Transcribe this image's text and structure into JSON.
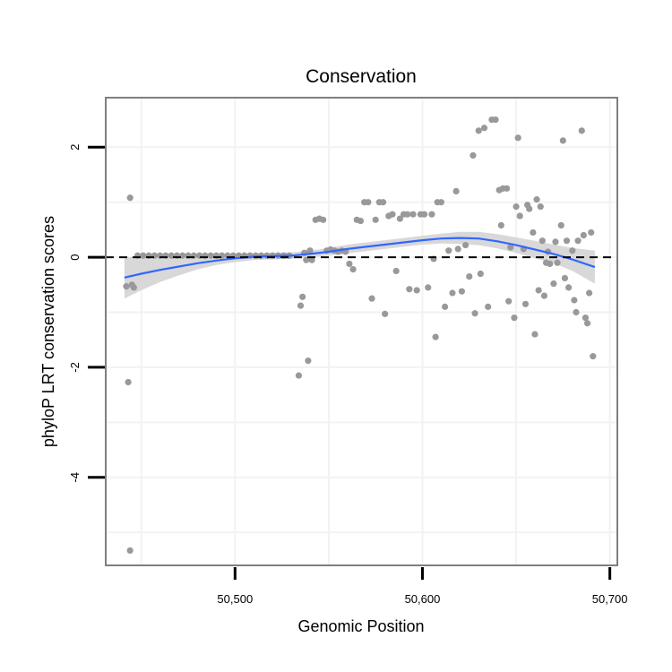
{
  "chart_data": {
    "type": "scatter",
    "title": "Conservation",
    "xlabel": "Genomic Position",
    "ylabel": "phyloP LRT conservation scores",
    "xlim": [
      50431,
      50704
    ],
    "ylim": [
      -5.6,
      2.9
    ],
    "x_ticks": [
      50500,
      50600,
      50700
    ],
    "x_tick_labels": [
      "50,500",
      "50,600",
      "50,700"
    ],
    "y_ticks": [
      -4,
      -2,
      0,
      2
    ],
    "y_tick_labels": [
      "-4",
      "-2",
      "0",
      "2"
    ],
    "grid": true,
    "reference_line": {
      "y": 0,
      "style": "dashed",
      "color": "#000000"
    },
    "colors": {
      "points": "#999999",
      "smooth": "#3366ff",
      "ribbon": "#d4d4d4",
      "grid": "#f2f2f2",
      "panel_border": "#7f7f7f"
    },
    "points": [
      {
        "x": 50442,
        "y": -0.53
      },
      {
        "x": 50443,
        "y": -2.27
      },
      {
        "x": 50444,
        "y": 1.08
      },
      {
        "x": 50445,
        "y": -0.5
      },
      {
        "x": 50446,
        "y": -0.55
      },
      {
        "x": 50444,
        "y": -5.33
      },
      {
        "x": 50448,
        "y": 0.03
      },
      {
        "x": 50451,
        "y": 0.03
      },
      {
        "x": 50454,
        "y": 0.03
      },
      {
        "x": 50457,
        "y": 0.03
      },
      {
        "x": 50460,
        "y": 0.03
      },
      {
        "x": 50463,
        "y": 0.03
      },
      {
        "x": 50466,
        "y": 0.03
      },
      {
        "x": 50469,
        "y": 0.03
      },
      {
        "x": 50472,
        "y": 0.03
      },
      {
        "x": 50475,
        "y": 0.03
      },
      {
        "x": 50478,
        "y": 0.03
      },
      {
        "x": 50481,
        "y": 0.03
      },
      {
        "x": 50484,
        "y": 0.03
      },
      {
        "x": 50487,
        "y": 0.03
      },
      {
        "x": 50490,
        "y": 0.03
      },
      {
        "x": 50493,
        "y": 0.03
      },
      {
        "x": 50496,
        "y": 0.03
      },
      {
        "x": 50499,
        "y": 0.03
      },
      {
        "x": 50502,
        "y": 0.03
      },
      {
        "x": 50505,
        "y": 0.03
      },
      {
        "x": 50508,
        "y": 0.03
      },
      {
        "x": 50511,
        "y": 0.03
      },
      {
        "x": 50514,
        "y": 0.03
      },
      {
        "x": 50517,
        "y": 0.03
      },
      {
        "x": 50520,
        "y": 0.03
      },
      {
        "x": 50523,
        "y": 0.03
      },
      {
        "x": 50526,
        "y": 0.03
      },
      {
        "x": 50529,
        "y": 0.03
      },
      {
        "x": 50534,
        "y": -2.15
      },
      {
        "x": 50535,
        "y": -0.88
      },
      {
        "x": 50536,
        "y": -0.72
      },
      {
        "x": 50537,
        "y": 0.08
      },
      {
        "x": 50538,
        "y": -0.05
      },
      {
        "x": 50539,
        "y": -1.88
      },
      {
        "x": 50540,
        "y": 0.12
      },
      {
        "x": 50541,
        "y": -0.05
      },
      {
        "x": 50543,
        "y": 0.68
      },
      {
        "x": 50545,
        "y": 0.7
      },
      {
        "x": 50547,
        "y": 0.68
      },
      {
        "x": 50549,
        "y": 0.12
      },
      {
        "x": 50551,
        "y": 0.14
      },
      {
        "x": 50553,
        "y": 0.12
      },
      {
        "x": 50555,
        "y": 0.1
      },
      {
        "x": 50557,
        "y": 0.12
      },
      {
        "x": 50559,
        "y": 0.1
      },
      {
        "x": 50561,
        "y": -0.12
      },
      {
        "x": 50563,
        "y": -0.22
      },
      {
        "x": 50565,
        "y": 0.68
      },
      {
        "x": 50567,
        "y": 0.66
      },
      {
        "x": 50569,
        "y": 1.0
      },
      {
        "x": 50571,
        "y": 1.0
      },
      {
        "x": 50573,
        "y": -0.75
      },
      {
        "x": 50575,
        "y": 0.68
      },
      {
        "x": 50577,
        "y": 1.0
      },
      {
        "x": 50579,
        "y": 1.0
      },
      {
        "x": 50580,
        "y": -1.03
      },
      {
        "x": 50582,
        "y": 0.75
      },
      {
        "x": 50584,
        "y": 0.78
      },
      {
        "x": 50586,
        "y": -0.25
      },
      {
        "x": 50588,
        "y": 0.7
      },
      {
        "x": 50590,
        "y": 0.78
      },
      {
        "x": 50592,
        "y": 0.78
      },
      {
        "x": 50593,
        "y": -0.58
      },
      {
        "x": 50595,
        "y": 0.78
      },
      {
        "x": 50597,
        "y": -0.6
      },
      {
        "x": 50599,
        "y": 0.78
      },
      {
        "x": 50601,
        "y": 0.78
      },
      {
        "x": 50603,
        "y": -0.55
      },
      {
        "x": 50605,
        "y": 0.78
      },
      {
        "x": 50606,
        "y": -0.03
      },
      {
        "x": 50607,
        "y": -1.45
      },
      {
        "x": 50608,
        "y": 1.0
      },
      {
        "x": 50610,
        "y": 1.0
      },
      {
        "x": 50612,
        "y": -0.9
      },
      {
        "x": 50614,
        "y": 0.12
      },
      {
        "x": 50616,
        "y": -0.65
      },
      {
        "x": 50618,
        "y": 1.2
      },
      {
        "x": 50619,
        "y": 0.15
      },
      {
        "x": 50621,
        "y": -0.62
      },
      {
        "x": 50623,
        "y": 0.22
      },
      {
        "x": 50625,
        "y": -0.35
      },
      {
        "x": 50627,
        "y": 1.85
      },
      {
        "x": 50628,
        "y": -1.02
      },
      {
        "x": 50630,
        "y": 2.3
      },
      {
        "x": 50631,
        "y": -0.3
      },
      {
        "x": 50633,
        "y": 2.35
      },
      {
        "x": 50635,
        "y": -0.9
      },
      {
        "x": 50637,
        "y": 2.5
      },
      {
        "x": 50639,
        "y": 2.5
      },
      {
        "x": 50641,
        "y": 1.22
      },
      {
        "x": 50642,
        "y": 0.58
      },
      {
        "x": 50643,
        "y": 1.25
      },
      {
        "x": 50645,
        "y": 1.25
      },
      {
        "x": 50646,
        "y": -0.8
      },
      {
        "x": 50647,
        "y": 0.18
      },
      {
        "x": 50649,
        "y": -1.1
      },
      {
        "x": 50650,
        "y": 0.92
      },
      {
        "x": 50651,
        "y": 2.17
      },
      {
        "x": 50652,
        "y": 0.75
      },
      {
        "x": 50654,
        "y": 0.15
      },
      {
        "x": 50655,
        "y": -0.85
      },
      {
        "x": 50656,
        "y": 0.95
      },
      {
        "x": 50657,
        "y": 0.88
      },
      {
        "x": 50659,
        "y": 0.45
      },
      {
        "x": 50660,
        "y": -1.4
      },
      {
        "x": 50661,
        "y": 1.05
      },
      {
        "x": 50662,
        "y": -0.6
      },
      {
        "x": 50663,
        "y": 0.92
      },
      {
        "x": 50664,
        "y": 0.3
      },
      {
        "x": 50665,
        "y": -0.7
      },
      {
        "x": 50666,
        "y": -0.1
      },
      {
        "x": 50667,
        "y": 0.1
      },
      {
        "x": 50668,
        "y": -0.12
      },
      {
        "x": 50670,
        "y": -0.48
      },
      {
        "x": 50671,
        "y": 0.28
      },
      {
        "x": 50672,
        "y": -0.1
      },
      {
        "x": 50674,
        "y": 0.58
      },
      {
        "x": 50675,
        "y": 2.12
      },
      {
        "x": 50676,
        "y": -0.38
      },
      {
        "x": 50677,
        "y": 0.3
      },
      {
        "x": 50678,
        "y": -0.55
      },
      {
        "x": 50680,
        "y": 0.12
      },
      {
        "x": 50681,
        "y": -0.78
      },
      {
        "x": 50682,
        "y": -1.0
      },
      {
        "x": 50683,
        "y": 0.3
      },
      {
        "x": 50685,
        "y": 2.3
      },
      {
        "x": 50686,
        "y": 0.4
      },
      {
        "x": 50687,
        "y": -1.1
      },
      {
        "x": 50688,
        "y": -1.2
      },
      {
        "x": 50689,
        "y": -0.65
      },
      {
        "x": 50690,
        "y": 0.45
      },
      {
        "x": 50691,
        "y": -1.8
      }
    ],
    "smooth_line": {
      "x": [
        50441,
        50450,
        50460,
        50470,
        50480,
        50490,
        50500,
        50510,
        50520,
        50530,
        50540,
        50550,
        50560,
        50570,
        50580,
        50590,
        50600,
        50610,
        50620,
        50630,
        50640,
        50650,
        50660,
        50670,
        50680,
        50692
      ],
      "y": [
        -0.37,
        -0.3,
        -0.23,
        -0.17,
        -0.11,
        -0.06,
        -0.02,
        0.01,
        0.02,
        0.03,
        0.06,
        0.1,
        0.15,
        0.19,
        0.23,
        0.27,
        0.31,
        0.34,
        0.35,
        0.34,
        0.29,
        0.22,
        0.14,
        0.06,
        -0.04,
        -0.18
      ],
      "lower": [
        -0.75,
        -0.6,
        -0.45,
        -0.33,
        -0.22,
        -0.14,
        -0.09,
        -0.05,
        -0.04,
        -0.03,
        0.0,
        0.03,
        0.07,
        0.11,
        0.15,
        0.19,
        0.23,
        0.25,
        0.24,
        0.22,
        0.16,
        0.08,
        -0.02,
        -0.11,
        -0.25,
        -0.48
      ],
      "upper": [
        0.0,
        0.0,
        -0.01,
        -0.01,
        0.0,
        0.02,
        0.05,
        0.07,
        0.08,
        0.09,
        0.12,
        0.17,
        0.23,
        0.27,
        0.31,
        0.35,
        0.39,
        0.43,
        0.46,
        0.46,
        0.42,
        0.36,
        0.3,
        0.23,
        0.17,
        0.12
      ]
    }
  }
}
